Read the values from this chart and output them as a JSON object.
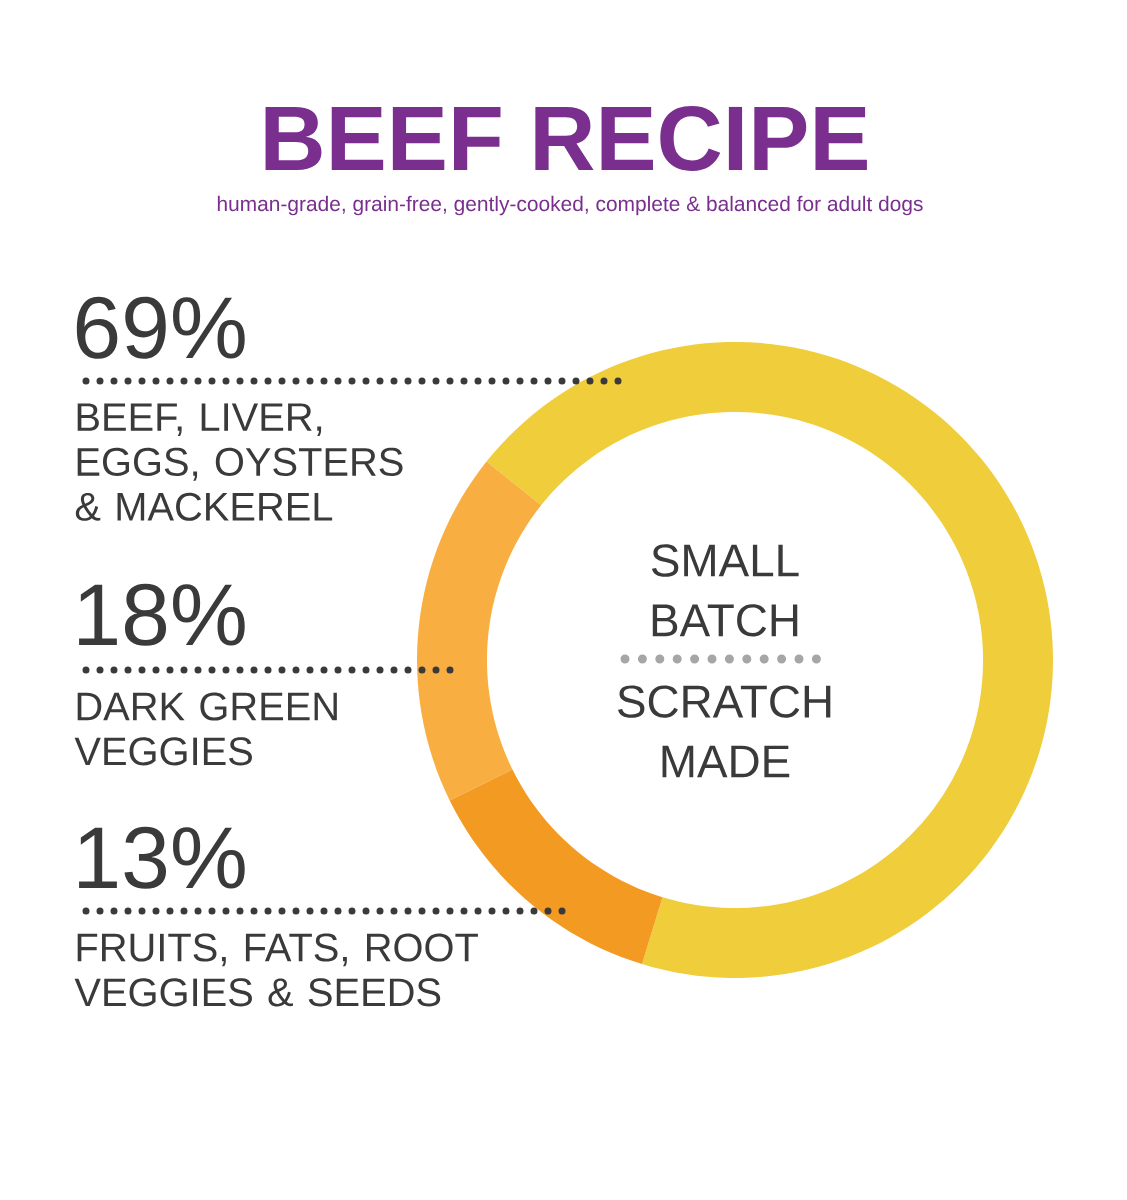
{
  "chart_data": {
    "type": "donut",
    "title": "BEEF RECIPE",
    "subtitle": "human-grade, grain-free, gently-cooked, complete & balanced for adult dogs",
    "categories": [
      "BEEF, LIVER, EGGS, OYSTERS & MACKEREL",
      "DARK GREEN VEGGIES",
      "FRUITS, FATS, ROOT VEGGIES & SEEDS"
    ],
    "values": [
      69,
      18,
      13
    ],
    "value_labels": [
      "69%",
      "18%",
      "13%"
    ],
    "colors": [
      "#f0cd3a",
      "#f9ae42",
      "#f39a22"
    ],
    "annotations": [
      "SMALL BATCH",
      "SCRATCH MADE"
    ]
  }
}
